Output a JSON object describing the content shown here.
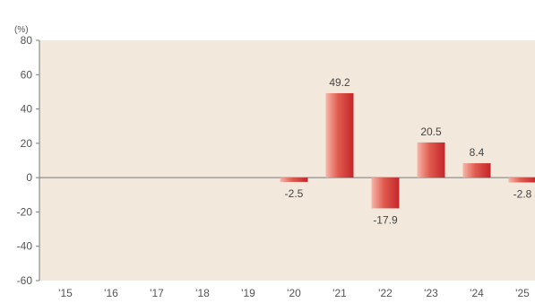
{
  "chart_data": {
    "type": "bar",
    "title": "",
    "y_unit": "(%)",
    "categories": [
      "'15",
      "'16",
      "'17",
      "'18",
      "'19",
      "'20",
      "'21",
      "'22",
      "'23",
      "'24",
      "'25"
    ],
    "values": [
      null,
      null,
      null,
      null,
      null,
      -2.5,
      49.2,
      -17.9,
      20.5,
      8.4,
      -2.8
    ],
    "value_labels": [
      "",
      "",
      "",
      "",
      "",
      "-2.5",
      "49.2",
      "-17.9",
      "20.5",
      "8.4",
      "-2.8"
    ],
    "ylim": [
      -60,
      80
    ],
    "yticks": [
      80,
      60,
      40,
      20,
      0,
      -20,
      -40,
      -60
    ],
    "grid": false,
    "colors": {
      "plot_bg": "#f3e8dc",
      "bar_light": "#f6b6a8",
      "bar_mid": "#e05a4e",
      "bar_dark": "#c4262a",
      "axis": "#7a7a7a"
    }
  }
}
